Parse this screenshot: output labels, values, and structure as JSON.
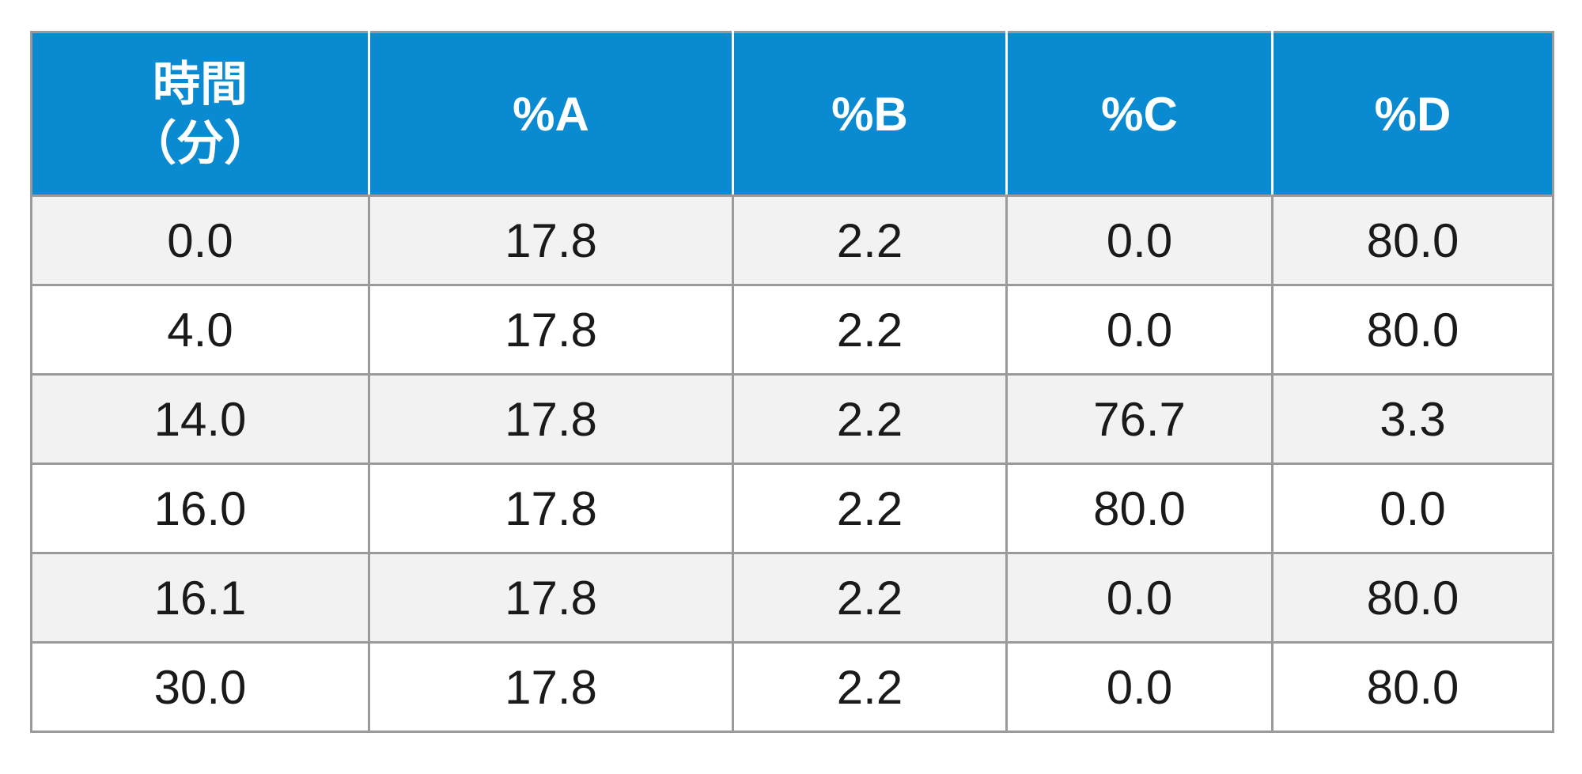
{
  "table": {
    "header": {
      "time_line1": "時間",
      "time_line2": "（分）",
      "col_a": "%A",
      "col_b": "%B",
      "col_c": "%C",
      "col_d": "%D"
    },
    "rows": [
      {
        "time": "0.0",
        "a": "17.8",
        "b": "2.2",
        "c": "0.0",
        "d": "80.0"
      },
      {
        "time": "4.0",
        "a": "17.8",
        "b": "2.2",
        "c": "0.0",
        "d": "80.0"
      },
      {
        "time": "14.0",
        "a": "17.8",
        "b": "2.2",
        "c": "76.7",
        "d": "3.3"
      },
      {
        "time": "16.0",
        "a": "17.8",
        "b": "2.2",
        "c": "80.0",
        "d": "0.0"
      },
      {
        "time": "16.1",
        "a": "17.8",
        "b": "2.2",
        "c": "0.0",
        "d": "80.0"
      },
      {
        "time": "30.0",
        "a": "17.8",
        "b": "2.2",
        "c": "0.0",
        "d": "80.0"
      }
    ]
  },
  "colors": {
    "header_bg": "#0a8ad0",
    "header_text": "#ffffff",
    "row_alt_bg": "#f2f2f3",
    "border": "#9a9a9a"
  }
}
